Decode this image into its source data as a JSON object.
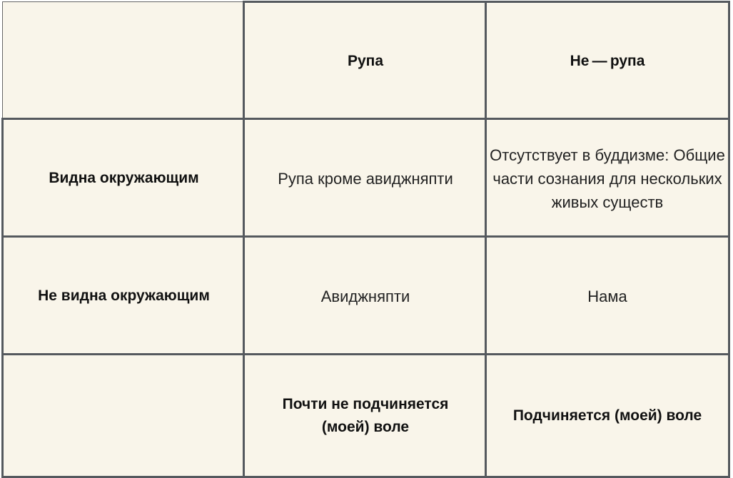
{
  "table": {
    "header": [
      "",
      "Рупа",
      "Не — рупа"
    ],
    "rows": [
      {
        "label": "Видна окружающим",
        "cells": [
          "Рупа кроме авиджняпти",
          "Отсутствует в буддизме: Общие части сознания для нескольких живых существ"
        ]
      },
      {
        "label": "Не видна окружающим",
        "cells": [
          "Авиджняпти",
          "Нама"
        ]
      },
      {
        "label": "",
        "cells": [
          "Почти не подчиняется (моей) воле",
          "Подчиняется (моей) воле"
        ]
      }
    ]
  }
}
